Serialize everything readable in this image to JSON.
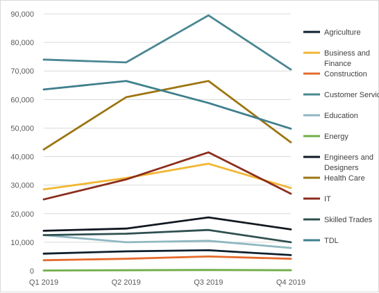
{
  "chart_data": {
    "type": "line",
    "title": "",
    "xlabel": "",
    "ylabel": "",
    "categories": [
      "Q1 2019",
      "Q2 2019",
      "Q3 2019",
      "Q4 2019"
    ],
    "ylim": [
      0,
      90000
    ],
    "yticks": [
      0,
      10000,
      20000,
      30000,
      40000,
      50000,
      60000,
      70000,
      80000,
      90000
    ],
    "ytick_labels": [
      "0",
      "10,000",
      "20,000",
      "30,000",
      "40,000",
      "50,000",
      "60,000",
      "70,000",
      "80,000",
      "90,000"
    ],
    "grid": true,
    "legend_position": "right",
    "series": [
      {
        "name": "Agriculture",
        "color": "#0d1f2d",
        "values": [
          6000,
          6800,
          7200,
          5500
        ]
      },
      {
        "name": "Business and Finance",
        "color": "#f2b632",
        "values": [
          28500,
          32500,
          37500,
          29000
        ]
      },
      {
        "name": "Construction",
        "color": "#e46a2c",
        "values": [
          3700,
          4200,
          5000,
          4200
        ]
      },
      {
        "name": "Customer Service",
        "color": "#4a8792",
        "values": [
          74000,
          73000,
          89500,
          70500
        ]
      },
      {
        "name": "Education",
        "color": "#8fb7c1",
        "values": [
          12500,
          10000,
          10500,
          8000
        ]
      },
      {
        "name": "Energy",
        "color": "#70ad47",
        "values": [
          100,
          200,
          300,
          200
        ]
      },
      {
        "name": "Engineers and Designers",
        "color": "#101820",
        "values": [
          14000,
          14800,
          18700,
          14500
        ]
      },
      {
        "name": "Health Care",
        "color": "#9c7511",
        "values": [
          42500,
          60800,
          66500,
          45000
        ]
      },
      {
        "name": "IT",
        "color": "#8b2d1c",
        "values": [
          25000,
          32000,
          41500,
          27000
        ]
      },
      {
        "name": "Skilled Trades",
        "color": "#2f4f4f",
        "values": [
          12500,
          13000,
          14300,
          10000
        ]
      },
      {
        "name": "TDL",
        "color": "#3e7f8c",
        "values": [
          63500,
          66500,
          58800,
          49800
        ]
      }
    ]
  }
}
